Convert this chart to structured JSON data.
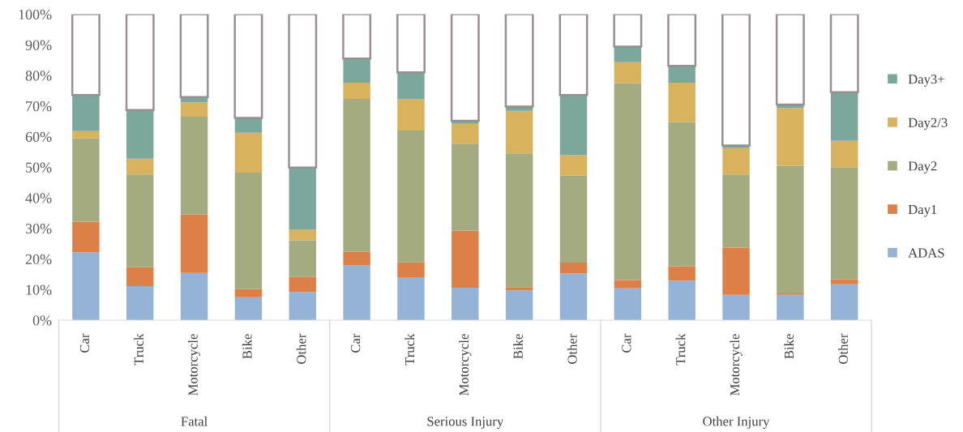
{
  "chart_data": {
    "type": "bar",
    "stacked": true,
    "categories": [
      "Car",
      "Truck",
      "Motorcycle",
      "Bike",
      "Other",
      "Car",
      "Truck",
      "Motorcycle",
      "Bike",
      "Other",
      "Car",
      "Truck",
      "Motorcycle",
      "Bike",
      "Other"
    ],
    "series": [
      {
        "name": "ADAS",
        "color": "#95b3d7",
        "values": [
          22.2,
          11.1,
          15.4,
          7.5,
          9.2,
          17.9,
          14.0,
          10.6,
          9.7,
          15.2,
          10.4,
          12.9,
          8.3,
          8.3,
          11.7
        ]
      },
      {
        "name": "Day1",
        "color": "#dd8047",
        "values": [
          10.0,
          6.2,
          19.2,
          2.6,
          4.9,
          4.5,
          4.9,
          18.7,
          1.1,
          3.6,
          2.7,
          4.7,
          15.4,
          0.4,
          1.6
        ]
      },
      {
        "name": "Day2",
        "color": "#a5ab81",
        "values": [
          27.2,
          30.3,
          31.9,
          38.1,
          12.0,
          49.9,
          43.1,
          28.4,
          43.7,
          28.4,
          64.4,
          47.2,
          23.9,
          41.8,
          36.7
        ]
      },
      {
        "name": "Day2/3",
        "color": "#d8b25c",
        "values": [
          2.4,
          5.2,
          4.7,
          13.1,
          3.5,
          5.3,
          10.2,
          6.5,
          13.9,
          6.7,
          6.8,
          12.8,
          8.6,
          18.8,
          8.6
        ]
      },
      {
        "name": "Day3+",
        "color": "#7ba79d",
        "values": [
          11.8,
          15.9,
          1.7,
          4.8,
          20.3,
          7.9,
          8.8,
          1.0,
          1.4,
          19.7,
          5.1,
          5.5,
          0.9,
          1.2,
          15.9
        ]
      },
      {
        "color": "#ffffff",
        "values": [
          26.4,
          31.3,
          27.1,
          33.9,
          50.1,
          14.5,
          19.0,
          34.8,
          30.2,
          26.4,
          10.6,
          16.9,
          42.9,
          29.5,
          25.5
        ]
      }
    ],
    "ylim": [
      0,
      100
    ],
    "yticks": [
      {
        "value": 0,
        "label": "0%"
      },
      {
        "value": 10,
        "label": "10%"
      },
      {
        "value": 20,
        "label": "20%"
      },
      {
        "value": 30,
        "label": "30%"
      },
      {
        "value": 40,
        "label": "40%"
      },
      {
        "value": 50,
        "label": "50%"
      },
      {
        "value": 60,
        "label": "60%"
      },
      {
        "value": 70,
        "label": "70%"
      },
      {
        "value": 80,
        "label": "80%"
      },
      {
        "value": 90,
        "label": "90%"
      },
      {
        "value": 100,
        "label": "100%"
      }
    ],
    "annotations": [
      "Fatal",
      "Serious Injury",
      "Other Injury"
    ],
    "legend": "right",
    "grid": false
  }
}
